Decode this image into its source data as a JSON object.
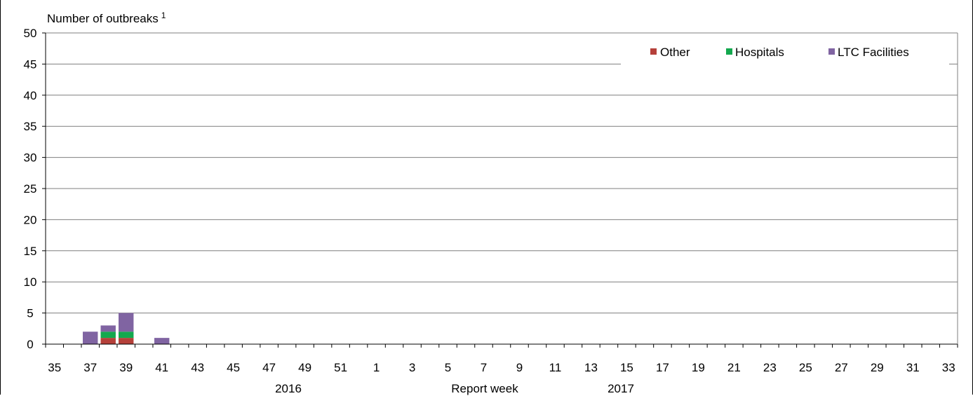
{
  "chart_data": {
    "type": "bar",
    "stacked": true,
    "ylabel": "Number of outbreaks",
    "ylabel_superscript": "1",
    "xlabel": "Report week",
    "year_labels": [
      "2016",
      "2017"
    ],
    "ylim": [
      0,
      50
    ],
    "yticks": [
      0,
      5,
      10,
      15,
      20,
      25,
      30,
      35,
      40,
      45,
      50
    ],
    "grid": true,
    "legend_position": "top-right",
    "categories": [
      "35",
      "36",
      "37",
      "38",
      "39",
      "40",
      "41",
      "42",
      "43",
      "44",
      "45",
      "46",
      "47",
      "48",
      "49",
      "50",
      "51",
      "52",
      "1",
      "2",
      "3",
      "4",
      "5",
      "6",
      "7",
      "8",
      "9",
      "10",
      "11",
      "12",
      "13",
      "14",
      "15",
      "16",
      "17",
      "18",
      "19",
      "20",
      "21",
      "22",
      "23",
      "24",
      "25",
      "26",
      "27",
      "28",
      "29",
      "30",
      "31",
      "32",
      "33"
    ],
    "series": [
      {
        "name": "Other",
        "color": "#b5403a",
        "values": [
          0,
          0,
          0,
          1,
          1,
          0,
          0,
          0,
          0,
          0,
          0,
          0,
          0,
          0,
          0,
          0,
          0,
          0,
          0,
          0,
          0,
          0,
          0,
          0,
          0,
          0,
          0,
          0,
          0,
          0,
          0,
          0,
          0,
          0,
          0,
          0,
          0,
          0,
          0,
          0,
          0,
          0,
          0,
          0,
          0,
          0,
          0,
          0,
          0,
          0,
          0
        ]
      },
      {
        "name": "Hospitals",
        "color": "#13a84e",
        "values": [
          0,
          0,
          0,
          1,
          1,
          0,
          0,
          0,
          0,
          0,
          0,
          0,
          0,
          0,
          0,
          0,
          0,
          0,
          0,
          0,
          0,
          0,
          0,
          0,
          0,
          0,
          0,
          0,
          0,
          0,
          0,
          0,
          0,
          0,
          0,
          0,
          0,
          0,
          0,
          0,
          0,
          0,
          0,
          0,
          0,
          0,
          0,
          0,
          0,
          0,
          0
        ]
      },
      {
        "name": "LTC Facilities",
        "color": "#8064a2",
        "values": [
          0,
          0,
          2,
          1,
          3,
          0,
          1,
          0,
          0,
          0,
          0,
          0,
          0,
          0,
          0,
          0,
          0,
          0,
          0,
          0,
          0,
          0,
          0,
          0,
          0,
          0,
          0,
          0,
          0,
          0,
          0,
          0,
          0,
          0,
          0,
          0,
          0,
          0,
          0,
          0,
          0,
          0,
          0,
          0,
          0,
          0,
          0,
          0,
          0,
          0,
          0
        ]
      }
    ]
  }
}
